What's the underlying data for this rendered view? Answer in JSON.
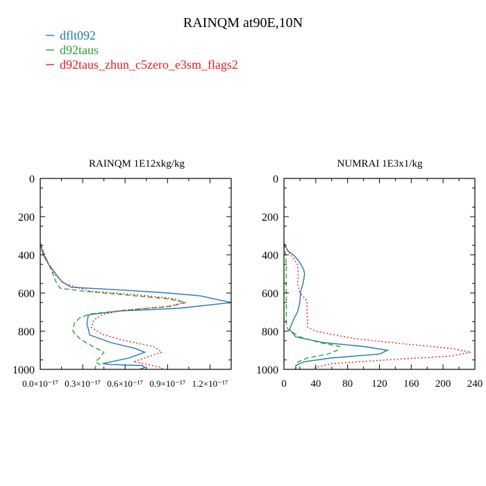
{
  "figure": {
    "title": "RAINQM at90E,10N",
    "legend": [
      {
        "label": "dflt092",
        "color": "#1f77b4",
        "dash": "solid"
      },
      {
        "label": "d92taus",
        "color": "#2ca02c",
        "dash": "dashed"
      },
      {
        "label": "d92taus_zhun_c5zero_e3sm_flags2",
        "color": "#e41a1c",
        "dash": "dotted"
      }
    ]
  },
  "chart_data": [
    {
      "type": "line",
      "title": "RAINQM  1E12xkg/kg",
      "xlabel": "",
      "ylabel": "",
      "xlim": [
        0.0,
        1.35e-17
      ],
      "ylim": [
        1000,
        0
      ],
      "xticks": [
        0.0,
        3e-18,
        6e-18,
        9e-18,
        1.2e-17
      ],
      "xtick_labels": [
        "0.0×10⁻¹⁷",
        "0.3×10⁻¹⁷",
        "0.6×10⁻¹⁷",
        "0.9×10⁻¹⁷",
        "1.2×10⁻¹⁷"
      ],
      "yticks": [
        0,
        200,
        400,
        600,
        800,
        1000
      ],
      "ytick_labels": [
        "0",
        "200",
        "400",
        "600",
        "800",
        "1000"
      ],
      "series": [
        {
          "name": "dflt092",
          "color": "#1f77b4",
          "dash": "solid",
          "points": [
            [
              0.0,
              340
            ],
            [
              2e-19,
              400
            ],
            [
              6e-19,
              450
            ],
            [
              1.1e-18,
              500
            ],
            [
              1.5e-18,
              540
            ],
            [
              2.2e-18,
              570
            ],
            [
              6e-18,
              585
            ],
            [
              9e-18,
              600
            ],
            [
              1.13e-17,
              615
            ],
            [
              1.35e-17,
              650
            ],
            [
              9.8e-18,
              680
            ],
            [
              5.5e-18,
              695
            ],
            [
              3.4e-18,
              715
            ],
            [
              3.3e-18,
              760
            ],
            [
              3.5e-18,
              820
            ],
            [
              5e-18,
              860
            ],
            [
              6.7e-18,
              890
            ],
            [
              7.4e-18,
              910
            ],
            [
              6.3e-18,
              940
            ],
            [
              4.4e-18,
              970
            ],
            [
              5e-18,
              975
            ],
            [
              7.2e-18,
              980
            ],
            [
              7.4e-18,
              990
            ],
            [
              7e-18,
              1000
            ]
          ]
        },
        {
          "name": "d92taus",
          "color": "#2ca02c",
          "dash": "dashed",
          "points": [
            [
              0.0,
              340
            ],
            [
              3e-19,
              400
            ],
            [
              6e-19,
              450
            ],
            [
              9e-19,
              500
            ],
            [
              1.1e-18,
              540
            ],
            [
              1.4e-18,
              575
            ],
            [
              3e-18,
              590
            ],
            [
              6e-18,
              610
            ],
            [
              9e-18,
              630
            ],
            [
              1.03e-17,
              650
            ],
            [
              9.2e-18,
              670
            ],
            [
              6e-18,
              690
            ],
            [
              3.5e-18,
              710
            ],
            [
              2.8e-18,
              730
            ],
            [
              2.4e-18,
              760
            ],
            [
              2.3e-18,
              800
            ],
            [
              2.8e-18,
              840
            ],
            [
              3.7e-18,
              880
            ],
            [
              4.5e-18,
              910
            ],
            [
              4.2e-18,
              940
            ],
            [
              3.9e-18,
              960
            ],
            [
              4.2e-18,
              975
            ],
            [
              3.9e-18,
              985
            ],
            [
              3.9e-18,
              1000
            ]
          ]
        },
        {
          "name": "d92taus_zhun_c5zero_e3sm_flags2",
          "color": "#e41a1c",
          "dash": "dotted",
          "points": [
            [
              0.0,
              340
            ],
            [
              3e-19,
              400
            ],
            [
              6e-19,
              450
            ],
            [
              1e-18,
              500
            ],
            [
              1.7e-18,
              550
            ],
            [
              3.5e-18,
              590
            ],
            [
              7e-18,
              610
            ],
            [
              9.5e-18,
              630
            ],
            [
              1.02e-17,
              650
            ],
            [
              9e-18,
              670
            ],
            [
              6e-18,
              690
            ],
            [
              4.5e-18,
              710
            ],
            [
              3.8e-18,
              740
            ],
            [
              3.6e-18,
              780
            ],
            [
              4.5e-18,
              820
            ],
            [
              6e-18,
              850
            ],
            [
              8e-18,
              880
            ],
            [
              8.6e-18,
              910
            ],
            [
              7.4e-18,
              940
            ],
            [
              6.6e-18,
              960
            ],
            [
              8.6e-18,
              990
            ],
            [
              8.6e-18,
              1000
            ]
          ]
        }
      ]
    },
    {
      "type": "line",
      "title": "NUMRAI  1E3x1/kg",
      "xlabel": "",
      "ylabel": "",
      "xlim": [
        0,
        240
      ],
      "ylim": [
        1000,
        0
      ],
      "xticks": [
        0,
        40,
        80,
        120,
        160,
        200,
        240
      ],
      "xtick_labels": [
        "0",
        "40",
        "80",
        "120",
        "160",
        "200",
        "240"
      ],
      "yticks": [
        0,
        200,
        400,
        600,
        800,
        1000
      ],
      "ytick_labels": [
        "0",
        "200",
        "400",
        "600",
        "800",
        "1000"
      ],
      "series": [
        {
          "name": "dflt092",
          "color": "#1f77b4",
          "dash": "solid",
          "points": [
            [
              0,
              340
            ],
            [
              5,
              380
            ],
            [
              12,
              400
            ],
            [
              20,
              440
            ],
            [
              25,
              480
            ],
            [
              26,
              500
            ],
            [
              24,
              550
            ],
            [
              21,
              590
            ],
            [
              20,
              650
            ],
            [
              17,
              700
            ],
            [
              13,
              730
            ],
            [
              10,
              760
            ],
            [
              7,
              790
            ],
            [
              15,
              830
            ],
            [
              50,
              860
            ],
            [
              100,
              880
            ],
            [
              130,
              900
            ],
            [
              120,
              920
            ],
            [
              60,
              940
            ],
            [
              25,
              960
            ],
            [
              15,
              980
            ],
            [
              15,
              1000
            ]
          ]
        },
        {
          "name": "d92taus",
          "color": "#2ca02c",
          "dash": "dashed",
          "points": [
            [
              0,
              340
            ],
            [
              2,
              400
            ],
            [
              3,
              450
            ],
            [
              3,
              500
            ],
            [
              3,
              600
            ],
            [
              3,
              700
            ],
            [
              3,
              760
            ],
            [
              5,
              790
            ],
            [
              20,
              830
            ],
            [
              45,
              860
            ],
            [
              70,
              880
            ],
            [
              67,
              900
            ],
            [
              55,
              920
            ],
            [
              30,
              940
            ],
            [
              18,
              960
            ],
            [
              15,
              980
            ],
            [
              14,
              1000
            ]
          ]
        },
        {
          "name": "d92taus_zhun_c5zero_e3sm_flags2",
          "color": "#e41a1c",
          "dash": "dotted",
          "points": [
            [
              0,
              340
            ],
            [
              5,
              380
            ],
            [
              12,
              420
            ],
            [
              17,
              450
            ],
            [
              18,
              500
            ],
            [
              17,
              550
            ],
            [
              20,
              600
            ],
            [
              29,
              640
            ],
            [
              29,
              700
            ],
            [
              30,
              780
            ],
            [
              40,
              800
            ],
            [
              90,
              840
            ],
            [
              160,
              870
            ],
            [
              210,
              890
            ],
            [
              235,
              910
            ],
            [
              210,
              930
            ],
            [
              130,
              950
            ],
            [
              60,
              970
            ],
            [
              40,
              990
            ],
            [
              35,
              1000
            ]
          ]
        }
      ]
    }
  ]
}
